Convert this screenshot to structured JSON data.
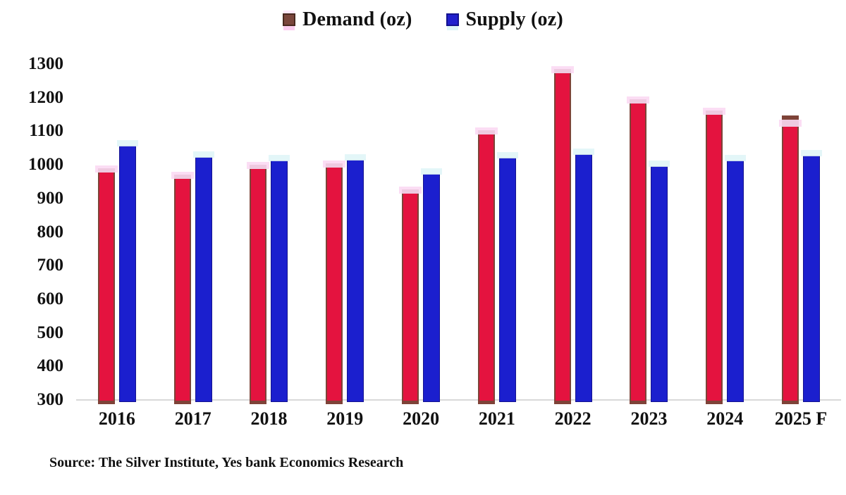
{
  "chart_data": {
    "type": "bar",
    "title": "",
    "categories": [
      "2016",
      "2017",
      "2018",
      "2019",
      "2020",
      "2021",
      "2022",
      "2023",
      "2024",
      "2025 F"
    ],
    "series": [
      {
        "name": "Demand (oz)",
        "color": "#e4133f",
        "border_color": "#7e4338",
        "values": [
          990,
          970,
          1000,
          1005,
          927,
          1102,
          1285,
          1196,
          1161,
          1147
        ]
      },
      {
        "name": "Supply (oz)",
        "color": "#1b1fce",
        "border_color": "#14138f",
        "values": [
          1056,
          1024,
          1013,
          1015,
          972,
          1022,
          1032,
          997,
          1012,
          1028
        ]
      }
    ],
    "ylim": [
      300,
      1300
    ],
    "yticks": [
      300,
      400,
      500,
      600,
      700,
      800,
      900,
      1000,
      1100,
      1200,
      1300
    ],
    "grid": false,
    "legend_position": "top-center",
    "axis_line_color": "#d9d9d9",
    "source": "Source: The Silver Institute, Yes bank Economics Research",
    "forecast_category": "2025 F"
  }
}
